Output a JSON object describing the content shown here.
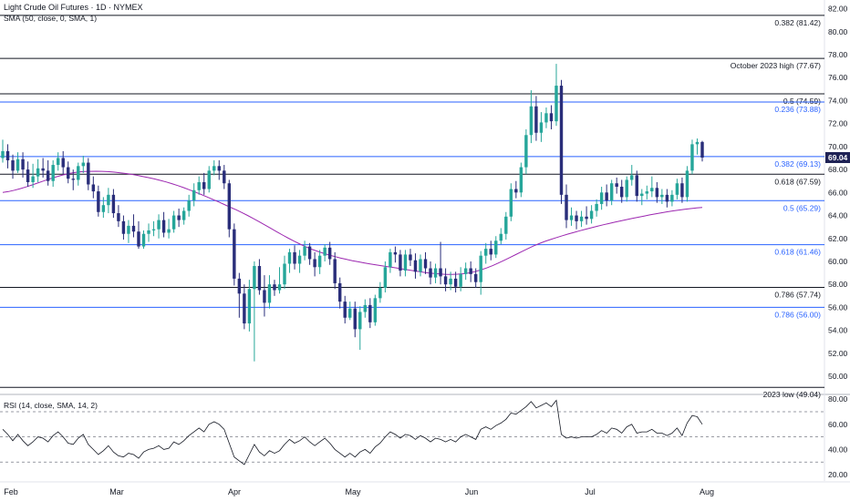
{
  "title": "Light Crude Oil Futures · 1D · NYMEX",
  "sma_label": "SMA (50, close, 0, SMA, 1)",
  "rsi_label": "RSI (14, close, SMA, 14, 2)",
  "colors": {
    "up": "#26a69a",
    "down": "#2a2e7a",
    "sma": "#9c27b0",
    "rsi": "#131722",
    "black_level": "#131722",
    "blue_level": "#2962ff",
    "last_price_bg": "#1f2255"
  },
  "chart_data": [
    {
      "type": "candlestick",
      "title": "Light Crude Oil Futures · 1D · NYMEX",
      "x_tick_labels": [
        "Feb",
        "Mar",
        "Apr",
        "May",
        "Jun",
        "Jul",
        "Aug"
      ],
      "y_tick_labels": [
        "50.00",
        "52.00",
        "54.00",
        "56.00",
        "58.00",
        "60.00",
        "62.00",
        "64.00",
        "66.00",
        "68.00",
        "70.00",
        "72.00",
        "74.00",
        "76.00",
        "78.00",
        "80.00",
        "82.00"
      ],
      "ylim": [
        48.5,
        82.6
      ],
      "last_price": "69.04",
      "levels": [
        {
          "label": "0.382 (81.42)",
          "value": 81.42,
          "color": "black"
        },
        {
          "label": "October 2023 high (77.67)",
          "value": 77.67,
          "color": "black"
        },
        {
          "label": "0.5 (74.59)",
          "value": 74.59,
          "color": "black"
        },
        {
          "label": "0.236 (73.88)",
          "value": 73.88,
          "color": "blue"
        },
        {
          "label": "0.382 (69.13)",
          "value": 69.13,
          "color": "blue"
        },
        {
          "label": "0.618 (67.59)",
          "value": 67.59,
          "color": "black"
        },
        {
          "label": "0.5 (65.29)",
          "value": 65.29,
          "color": "blue"
        },
        {
          "label": "0.618 (61.46)",
          "value": 61.46,
          "color": "blue"
        },
        {
          "label": "0.786 (57.74)",
          "value": 57.74,
          "color": "black"
        },
        {
          "label": "0.786 (56.00)",
          "value": 56.0,
          "color": "blue"
        },
        {
          "label": "2023 low (49.04)",
          "value": 49.04,
          "color": "black"
        }
      ],
      "sma_50": [
        66.0,
        67.8,
        67.1,
        64.5,
        61.0,
        59.5,
        59.0,
        61.8,
        63.6,
        64.7
      ],
      "candles": [
        [
          69.0,
          69.6,
          70.6,
          68.6
        ],
        [
          69.6,
          68.8,
          70.2,
          68.1
        ],
        [
          68.8,
          67.9,
          69.3,
          67.2
        ],
        [
          67.9,
          68.9,
          69.5,
          67.7
        ],
        [
          68.9,
          68.0,
          69.5,
          67.3
        ],
        [
          68.0,
          66.9,
          68.7,
          66.5
        ],
        [
          66.9,
          67.4,
          68.5,
          66.4
        ],
        [
          67.4,
          68.1,
          68.9,
          66.9
        ],
        [
          68.1,
          67.9,
          69.0,
          67.3
        ],
        [
          67.9,
          67.0,
          68.8,
          66.6
        ],
        [
          67.0,
          68.4,
          68.8,
          66.5
        ],
        [
          68.4,
          69.0,
          69.5,
          67.9
        ],
        [
          69.0,
          68.2,
          69.6,
          67.6
        ],
        [
          68.2,
          67.2,
          68.7,
          66.8
        ],
        [
          67.2,
          67.1,
          68.0,
          66.2
        ],
        [
          67.1,
          68.3,
          68.6,
          66.6
        ],
        [
          68.3,
          68.6,
          69.2,
          67.7
        ],
        [
          68.6,
          66.7,
          69.0,
          66.2
        ],
        [
          66.7,
          66.1,
          67.4,
          65.5
        ],
        [
          66.1,
          64.3,
          66.6,
          63.9
        ],
        [
          64.3,
          64.9,
          65.6,
          63.8
        ],
        [
          64.9,
          65.8,
          66.4,
          64.2
        ],
        [
          65.8,
          64.2,
          66.3,
          63.8
        ],
        [
          64.2,
          63.5,
          64.9,
          63.0
        ],
        [
          63.5,
          62.4,
          64.0,
          61.9
        ],
        [
          62.4,
          63.1,
          63.6,
          61.6
        ],
        [
          63.1,
          62.6,
          64.1,
          62.1
        ],
        [
          62.6,
          61.3,
          63.5,
          61.1
        ],
        [
          61.3,
          62.4,
          62.7,
          61.1
        ],
        [
          62.4,
          62.7,
          63.3,
          61.7
        ],
        [
          62.7,
          62.8,
          63.5,
          62.2
        ],
        [
          62.8,
          63.6,
          64.1,
          62.0
        ],
        [
          63.6,
          62.5,
          64.3,
          62.1
        ],
        [
          62.5,
          62.8,
          63.7,
          62.0
        ],
        [
          62.8,
          64.0,
          64.4,
          62.5
        ],
        [
          64.0,
          63.6,
          64.6,
          63.0
        ],
        [
          63.6,
          64.4,
          64.7,
          63.2
        ],
        [
          64.4,
          65.3,
          65.8,
          63.9
        ],
        [
          65.3,
          66.2,
          66.8,
          64.8
        ],
        [
          66.2,
          66.9,
          67.4,
          65.8
        ],
        [
          66.9,
          66.3,
          67.7,
          65.8
        ],
        [
          66.3,
          67.9,
          68.3,
          66.0
        ],
        [
          67.9,
          68.3,
          68.8,
          67.5
        ],
        [
          68.3,
          67.9,
          68.8,
          67.1
        ],
        [
          67.9,
          66.8,
          68.4,
          66.3
        ],
        [
          66.8,
          62.8,
          67.1,
          62.1
        ],
        [
          62.8,
          58.5,
          63.3,
          57.9
        ],
        [
          58.5,
          57.2,
          59.0,
          55.1
        ],
        [
          57.2,
          54.6,
          58.0,
          54.1
        ],
        [
          54.6,
          57.6,
          58.4,
          53.9
        ],
        [
          57.6,
          59.6,
          60.0,
          51.3
        ],
        [
          59.6,
          57.5,
          60.2,
          57.1
        ],
        [
          57.5,
          56.4,
          58.8,
          55.2
        ],
        [
          56.4,
          58.0,
          58.8,
          55.9
        ],
        [
          58.0,
          57.5,
          58.4,
          57.0
        ],
        [
          57.5,
          58.0,
          59.5,
          57.2
        ],
        [
          58.0,
          59.8,
          60.5,
          57.6
        ],
        [
          59.8,
          60.8,
          61.1,
          59.0
        ],
        [
          60.8,
          59.8,
          61.4,
          59.3
        ],
        [
          59.8,
          60.5,
          61.0,
          59.0
        ],
        [
          60.5,
          61.3,
          61.8,
          60.1
        ],
        [
          61.3,
          60.2,
          61.6,
          59.7
        ],
        [
          60.2,
          59.5,
          60.8,
          58.7
        ],
        [
          59.5,
          60.5,
          61.0,
          58.9
        ],
        [
          60.5,
          61.2,
          61.5,
          60.0
        ],
        [
          61.2,
          60.2,
          61.7,
          59.7
        ],
        [
          60.2,
          58.1,
          60.8,
          57.6
        ],
        [
          58.1,
          56.5,
          58.6,
          55.9
        ],
        [
          56.5,
          55.1,
          57.0,
          54.6
        ],
        [
          55.1,
          55.9,
          56.5,
          54.9
        ],
        [
          55.9,
          54.1,
          56.5,
          53.4
        ],
        [
          54.1,
          55.6,
          56.1,
          52.3
        ],
        [
          55.6,
          56.2,
          56.7,
          55.1
        ],
        [
          56.2,
          54.7,
          56.8,
          54.2
        ],
        [
          54.7,
          56.8,
          57.1,
          54.4
        ],
        [
          56.8,
          57.7,
          58.2,
          56.4
        ],
        [
          57.7,
          59.5,
          60.0,
          57.3
        ],
        [
          59.5,
          60.8,
          61.1,
          59.0
        ],
        [
          60.8,
          60.6,
          61.3,
          59.9
        ],
        [
          60.6,
          59.2,
          61.0,
          58.7
        ],
        [
          59.2,
          60.6,
          61.0,
          58.7
        ],
        [
          60.6,
          60.1,
          61.1,
          59.6
        ],
        [
          60.1,
          59.1,
          60.7,
          58.5
        ],
        [
          59.1,
          60.2,
          60.6,
          58.7
        ],
        [
          60.2,
          59.4,
          60.8,
          58.9
        ],
        [
          59.4,
          58.6,
          60.0,
          58.0
        ],
        [
          58.6,
          59.4,
          59.8,
          58.1
        ],
        [
          59.4,
          58.7,
          61.7,
          58.0
        ],
        [
          58.7,
          58.0,
          59.4,
          57.4
        ],
        [
          58.0,
          58.5,
          59.1,
          57.5
        ],
        [
          58.5,
          57.8,
          59.1,
          57.3
        ],
        [
          57.8,
          58.9,
          59.5,
          57.4
        ],
        [
          58.9,
          59.4,
          59.9,
          58.4
        ],
        [
          59.4,
          58.9,
          60.0,
          58.2
        ],
        [
          58.9,
          58.2,
          59.4,
          57.7
        ],
        [
          58.2,
          60.5,
          60.9,
          57.1
        ],
        [
          60.5,
          61.1,
          61.6,
          59.8
        ],
        [
          61.1,
          60.6,
          61.8,
          60.1
        ],
        [
          60.6,
          61.8,
          62.2,
          60.3
        ],
        [
          61.8,
          62.4,
          62.9,
          61.5
        ],
        [
          62.4,
          63.9,
          64.3,
          61.9
        ],
        [
          63.9,
          66.3,
          66.8,
          63.5
        ],
        [
          66.3,
          66.0,
          67.0,
          65.5
        ],
        [
          66.0,
          68.2,
          68.6,
          65.6
        ],
        [
          68.2,
          71.0,
          71.5,
          67.6
        ],
        [
          71.0,
          73.5,
          74.9,
          70.3
        ],
        [
          73.5,
          71.2,
          74.4,
          70.5
        ],
        [
          71.2,
          72.1,
          73.0,
          70.4
        ],
        [
          72.1,
          72.9,
          73.4,
          71.6
        ],
        [
          72.9,
          72.2,
          73.6,
          71.5
        ],
        [
          72.2,
          75.3,
          77.2,
          71.8
        ],
        [
          75.3,
          65.8,
          75.8,
          65.0
        ],
        [
          65.8,
          63.6,
          66.7,
          62.9
        ],
        [
          63.6,
          64.0,
          64.7,
          63.1
        ],
        [
          64.0,
          63.5,
          64.4,
          62.8
        ],
        [
          63.5,
          63.9,
          64.4,
          63.0
        ],
        [
          63.9,
          63.7,
          64.8,
          63.2
        ],
        [
          63.7,
          64.4,
          64.9,
          63.3
        ],
        [
          64.4,
          65.0,
          65.4,
          63.9
        ],
        [
          65.0,
          66.0,
          66.5,
          64.5
        ],
        [
          66.0,
          65.3,
          66.7,
          64.8
        ],
        [
          65.3,
          66.8,
          67.1,
          64.9
        ],
        [
          66.8,
          66.5,
          67.3,
          65.9
        ],
        [
          66.5,
          65.6,
          67.1,
          65.1
        ],
        [
          65.6,
          67.1,
          67.4,
          65.2
        ],
        [
          67.1,
          67.5,
          68.4,
          66.6
        ],
        [
          67.5,
          65.7,
          67.9,
          65.2
        ],
        [
          65.7,
          65.9,
          66.3,
          64.9
        ],
        [
          65.9,
          66.1,
          66.6,
          65.4
        ],
        [
          66.1,
          66.4,
          67.4,
          65.6
        ],
        [
          66.4,
          65.6,
          66.9,
          65.1
        ],
        [
          65.6,
          65.8,
          66.3,
          65.0
        ],
        [
          65.8,
          65.2,
          66.3,
          64.7
        ],
        [
          65.2,
          65.8,
          66.2,
          64.8
        ],
        [
          65.8,
          66.8,
          67.2,
          65.4
        ],
        [
          66.8,
          65.6,
          67.3,
          65.1
        ],
        [
          65.6,
          67.9,
          68.3,
          65.2
        ],
        [
          67.9,
          70.2,
          70.6,
          67.6
        ],
        [
          70.2,
          70.4,
          70.7,
          69.3
        ],
        [
          70.4,
          69.04,
          70.5,
          68.7
        ]
      ]
    },
    {
      "type": "line",
      "title": "RSI (14, close, SMA, 14, 2)",
      "x_tick_labels": [
        "Feb",
        "Mar",
        "Apr",
        "May",
        "Jun",
        "Jul",
        "Aug"
      ],
      "y_tick_labels": [
        "20.00",
        "40.00",
        "60.00",
        "80.00"
      ],
      "ylim": [
        15,
        83
      ],
      "reference_lines": [
        70,
        50,
        30
      ],
      "values": [
        56,
        52,
        47,
        52,
        47,
        43,
        46,
        50,
        49,
        46,
        51,
        54,
        50,
        45,
        44,
        49,
        52,
        44,
        40,
        36,
        39,
        43,
        38,
        35,
        34,
        37,
        36,
        33,
        38,
        40,
        41,
        43,
        40,
        41,
        46,
        44,
        47,
        51,
        54,
        57,
        54,
        60,
        62,
        60,
        56,
        45,
        34,
        31,
        28,
        36,
        44,
        38,
        35,
        39,
        37,
        39,
        44,
        48,
        45,
        47,
        50,
        46,
        43,
        46,
        49,
        45,
        40,
        37,
        34,
        37,
        34,
        38,
        40,
        37,
        42,
        45,
        50,
        54,
        52,
        49,
        52,
        51,
        48,
        51,
        49,
        46,
        49,
        48,
        46,
        48,
        46,
        50,
        52,
        50,
        48,
        56,
        58,
        56,
        59,
        61,
        64,
        69,
        68,
        71,
        74,
        78,
        73,
        75,
        77,
        74,
        79,
        52,
        49,
        50,
        49,
        50,
        50,
        50,
        52,
        55,
        53,
        57,
        56,
        53,
        58,
        60,
        53,
        54,
        54,
        56,
        53,
        53,
        51,
        53,
        57,
        51,
        61,
        67,
        66,
        60
      ]
    }
  ]
}
